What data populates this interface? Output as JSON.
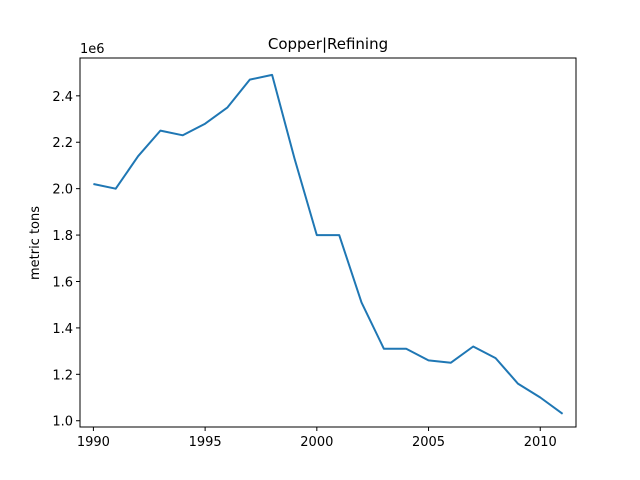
{
  "chart_data": {
    "type": "line",
    "title": "Copper|Refining",
    "xlabel": "",
    "ylabel": "metric tons",
    "y_offset_label": "1e6",
    "xlim": [
      1989.4,
      2011.6
    ],
    "ylim": [
      0.973,
      2.563
    ],
    "x_ticks": [
      1990,
      1995,
      2000,
      2005,
      2010
    ],
    "x_tick_labels": [
      "1990",
      "1995",
      "2000",
      "2005",
      "2010"
    ],
    "y_ticks": [
      1.0,
      1.2,
      1.4,
      1.6,
      1.8,
      2.0,
      2.2,
      2.4
    ],
    "y_tick_labels": [
      "1.0",
      "1.2",
      "1.4",
      "1.6",
      "1.8",
      "2.0",
      "2.2",
      "2.4"
    ],
    "grid": false,
    "line_color": "#1f77b4",
    "series": [
      {
        "x": [
          1990,
          1991,
          1992,
          1993,
          1994,
          1995,
          1996,
          1997,
          1998,
          1999,
          2000,
          2001,
          2002,
          2003,
          2004,
          2005,
          2006,
          2007,
          2008,
          2009,
          2010,
          2011
        ],
        "values": [
          2.02,
          2.0,
          2.14,
          2.25,
          2.23,
          2.28,
          2.35,
          2.47,
          2.49,
          2.13,
          1.8,
          1.8,
          1.51,
          1.31,
          1.31,
          1.26,
          1.25,
          1.32,
          1.27,
          1.16,
          1.1,
          1.03
        ]
      }
    ]
  }
}
